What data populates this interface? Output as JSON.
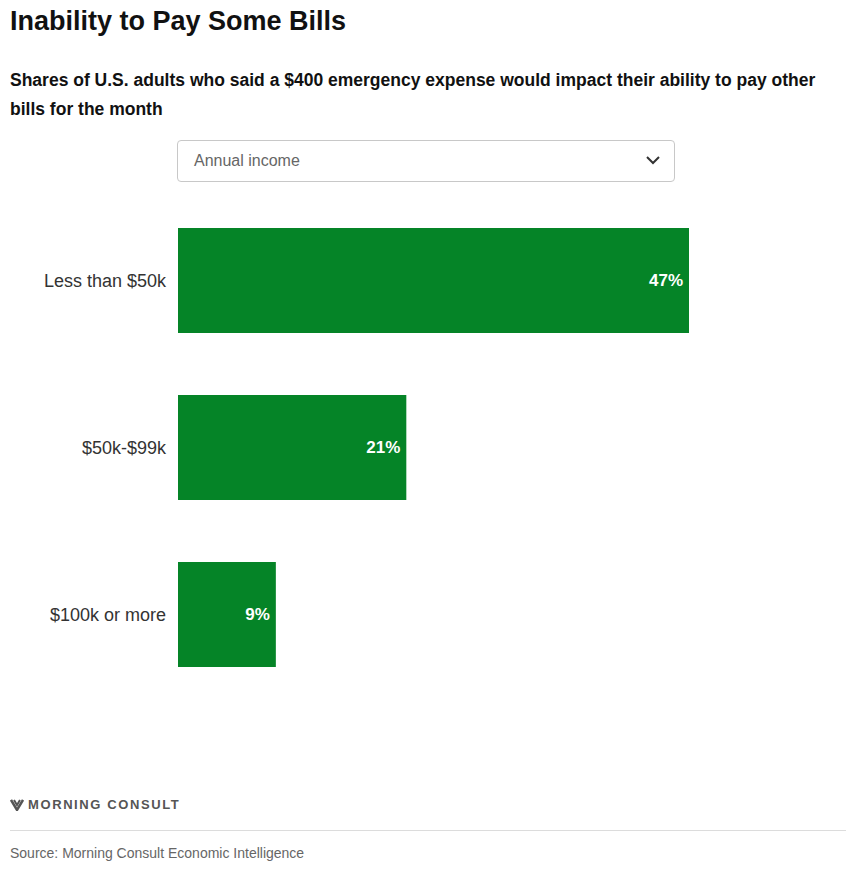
{
  "chart_data": {
    "type": "bar",
    "title": "Inability to Pay Some Bills",
    "subtitle": "Shares of U.S. adults who said a $400 emergency expense would impact their ability to pay other bills for the month",
    "dropdown": "Annual income",
    "logo": "MORNING CONSULT",
    "source": "Source: Morning Consult Economic Intelligence",
    "categories": [
      "Less than $50k",
      "$50k-$99k",
      "$100k or more"
    ],
    "values": [
      47,
      21,
      9
    ],
    "value_labels": [
      "47%",
      "21%",
      "9%"
    ],
    "color": "#058427",
    "orientation": "horizontal",
    "data_labels": true,
    "tick_labels": "y",
    "grid": false,
    "xlim": [
      0,
      47
    ],
    "xticks": [
      0,
      47
    ]
  }
}
